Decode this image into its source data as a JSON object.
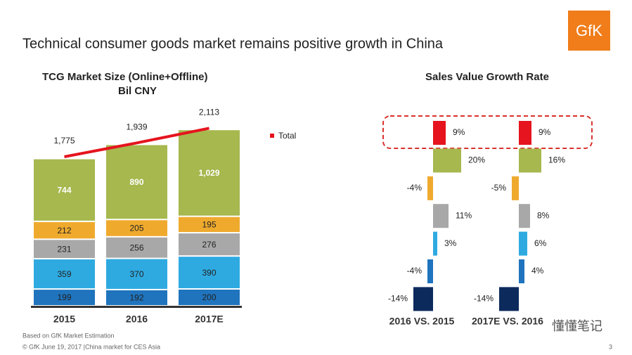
{
  "header": {
    "title": "Technical consumer goods market remains positive growth in China",
    "logo": "GfK"
  },
  "chart_data": [
    {
      "type": "stacked-bar",
      "title": "TCG Market  Size (Online+Offline)",
      "subtitle": "Bil CNY",
      "categories": [
        "2015",
        "2016",
        "2017E"
      ],
      "series": [
        {
          "color": "#1f74bd",
          "values": [
            199,
            192,
            200
          ]
        },
        {
          "color": "#2eaae1",
          "values": [
            359,
            370,
            390
          ]
        },
        {
          "color": "#a8a8a8",
          "values": [
            231,
            256,
            276
          ]
        },
        {
          "color": "#efaa2e",
          "values": [
            212,
            205,
            195
          ]
        },
        {
          "color": "#a6b84e",
          "values": [
            744,
            890,
            1029
          ],
          "value_labels": [
            "744",
            "890",
            "1,029"
          ]
        },
        {
          "name": "Total",
          "type": "line",
          "color": "#e5141e",
          "values": [
            1775,
            1939,
            2113
          ],
          "value_labels": [
            "1,775",
            "1,939",
            "2,113"
          ]
        }
      ]
    },
    {
      "type": "growth-bars",
      "title": "Sales Value Growth Rate",
      "colors": [
        "#e5141e",
        "#a6b84e",
        "#efaa2e",
        "#a8a8a8",
        "#2eaae1",
        "#1f74bd",
        "#0c2a5c"
      ],
      "series": [
        {
          "name": "2016 VS.  2015",
          "values": [
            9,
            20,
            -4,
            11,
            3,
            -4,
            -14
          ],
          "value_labels": [
            "9%",
            "20%",
            "-4%",
            "11%",
            "3%",
            "-4%",
            "-14%"
          ]
        },
        {
          "name": "2017E VS. 2016",
          "values": [
            9,
            16,
            -5,
            8,
            6,
            4,
            -14
          ],
          "value_labels": [
            "9%",
            "16%",
            "-5%",
            "8%",
            "6%",
            "4%",
            "-14%"
          ]
        }
      ]
    }
  ],
  "footer": {
    "source": "Based on GfK Market Estimation",
    "copyright": "© GfK June 19, 2017 |China market for CES Asia",
    "page": "3"
  },
  "watermark": "懂懂笔记"
}
